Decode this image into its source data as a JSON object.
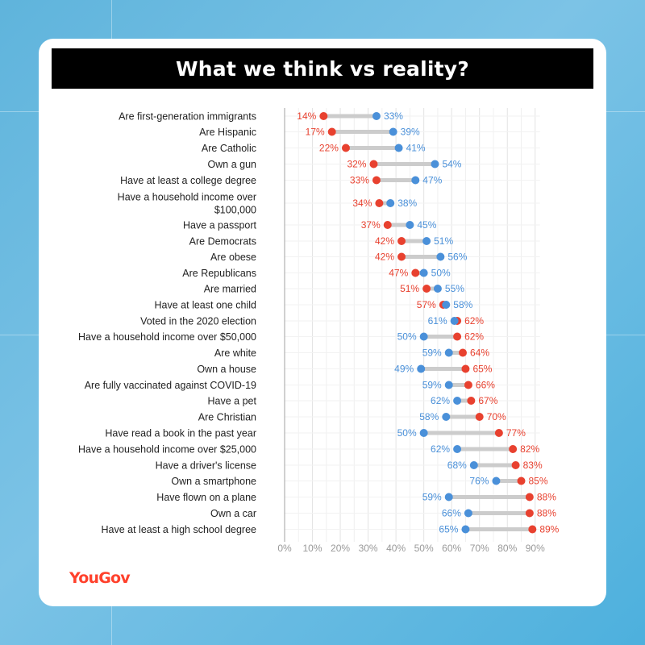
{
  "title": "What we think vs reality?",
  "brand": "YouGov",
  "colors": {
    "red": "#e8412f",
    "blue": "#4a90d9",
    "connector": "#cccccc",
    "grid": "#e3e3e3"
  },
  "chart_data": {
    "type": "dumbbell",
    "title": "What we think vs reality?",
    "xlim": [
      0,
      90
    ],
    "x_ticks": [
      "0%",
      "10%",
      "20%",
      "30%",
      "40%",
      "50%",
      "60%",
      "70%",
      "80%",
      "90%"
    ],
    "grid": true,
    "series": [
      {
        "color": "#e8412f"
      },
      {
        "color": "#4a90d9"
      }
    ],
    "rows": [
      {
        "label": [
          "Are first-generation immigrants"
        ],
        "red": 14,
        "blue": 33
      },
      {
        "label": [
          "Are Hispanic"
        ],
        "red": 17,
        "blue": 39
      },
      {
        "label": [
          "Are Catholic"
        ],
        "red": 22,
        "blue": 41
      },
      {
        "label": [
          "Own a gun"
        ],
        "red": 32,
        "blue": 54
      },
      {
        "label": [
          "Have at least a college degree"
        ],
        "red": 33,
        "blue": 47
      },
      {
        "label": [
          "Have a household income over",
          "$100,000"
        ],
        "red": 34,
        "blue": 38
      },
      {
        "label": [
          "Have a passport"
        ],
        "red": 37,
        "blue": 45
      },
      {
        "label": [
          "Are Democrats"
        ],
        "red": 42,
        "blue": 51
      },
      {
        "label": [
          "Are obese"
        ],
        "red": 42,
        "blue": 56
      },
      {
        "label": [
          "Are Republicans"
        ],
        "red": 47,
        "blue": 50
      },
      {
        "label": [
          "Are married"
        ],
        "red": 51,
        "blue": 55
      },
      {
        "label": [
          "Have at least one child"
        ],
        "red": 57,
        "blue": 58
      },
      {
        "label": [
          "Voted in the 2020 election"
        ],
        "red": 62,
        "blue": 61
      },
      {
        "label": [
          "Have a household income over $50,000"
        ],
        "red": 62,
        "blue": 50
      },
      {
        "label": [
          "Are white"
        ],
        "red": 64,
        "blue": 59
      },
      {
        "label": [
          "Own a house"
        ],
        "red": 65,
        "blue": 49
      },
      {
        "label": [
          "Are fully vaccinated against COVID-19"
        ],
        "red": 66,
        "blue": 59
      },
      {
        "label": [
          "Have a pet"
        ],
        "red": 67,
        "blue": 62
      },
      {
        "label": [
          "Are Christian"
        ],
        "red": 70,
        "blue": 58
      },
      {
        "label": [
          "Have read a book in the past year"
        ],
        "red": 77,
        "blue": 50
      },
      {
        "label": [
          "Have a household income over $25,000"
        ],
        "red": 82,
        "blue": 62
      },
      {
        "label": [
          "Have a driver's license"
        ],
        "red": 83,
        "blue": 68
      },
      {
        "label": [
          "Own a smartphone"
        ],
        "red": 85,
        "blue": 76
      },
      {
        "label": [
          "Have flown on a plane"
        ],
        "red": 88,
        "blue": 59
      },
      {
        "label": [
          "Own a car"
        ],
        "red": 88,
        "blue": 66
      },
      {
        "label": [
          "Have at least a high school degree"
        ],
        "red": 89,
        "blue": 65
      }
    ]
  }
}
